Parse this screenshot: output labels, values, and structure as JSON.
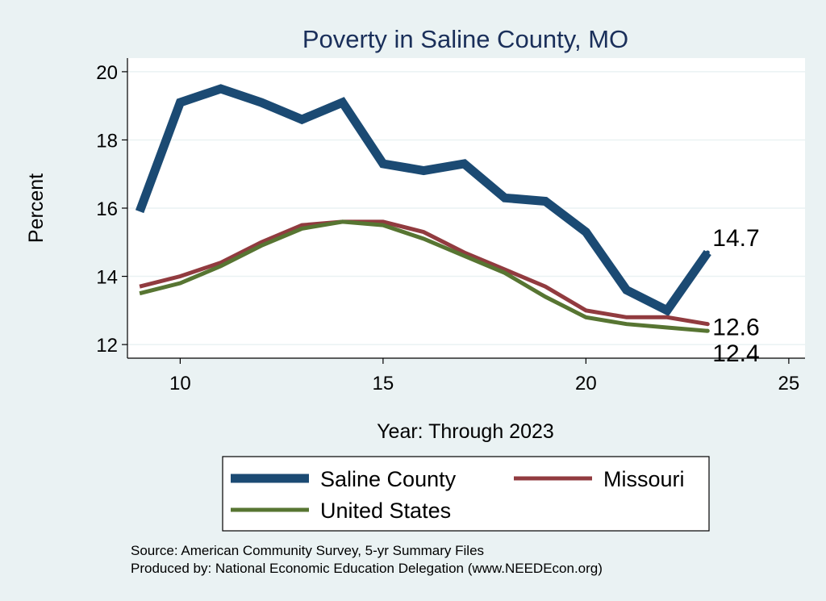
{
  "chart_data": {
    "type": "line",
    "title": "Poverty in Saline County, MO",
    "xlabel": "Year: Through 2023",
    "ylabel": "Percent",
    "xlim": [
      8.7,
      25.4
    ],
    "ylim": [
      11.6,
      20.4
    ],
    "xticks": [
      10,
      15,
      20,
      25
    ],
    "yticks": [
      12,
      14,
      16,
      18,
      20
    ],
    "grid": true,
    "legend_position": "bottom",
    "x": [
      9,
      10,
      11,
      12,
      13,
      14,
      15,
      16,
      17,
      18,
      19,
      20,
      21,
      22,
      23
    ],
    "series": [
      {
        "name": "Saline County",
        "color": "#1b4a73",
        "values": [
          15.9,
          19.1,
          19.5,
          19.1,
          18.6,
          19.1,
          17.3,
          17.1,
          17.3,
          16.3,
          16.2,
          15.3,
          13.6,
          13.0,
          14.7
        ],
        "end_label": "14.7"
      },
      {
        "name": "Missouri",
        "color": "#913b3f",
        "values": [
          13.7,
          14.0,
          14.4,
          15.0,
          15.5,
          15.6,
          15.6,
          15.3,
          14.7,
          14.2,
          13.7,
          13.0,
          12.8,
          12.8,
          12.6
        ],
        "end_label": "12.6"
      },
      {
        "name": "United States",
        "color": "#577532",
        "values": [
          13.5,
          13.8,
          14.3,
          14.9,
          15.4,
          15.6,
          15.5,
          15.1,
          14.6,
          14.1,
          13.4,
          12.8,
          12.6,
          12.5,
          12.4
        ],
        "end_label": "12.4"
      }
    ]
  },
  "source": {
    "line1": "Source: American Community Survey, 5-yr Summary Files",
    "line2": "Produced by: National Economic Education Delegation (www.NEEDEcon.org)"
  }
}
